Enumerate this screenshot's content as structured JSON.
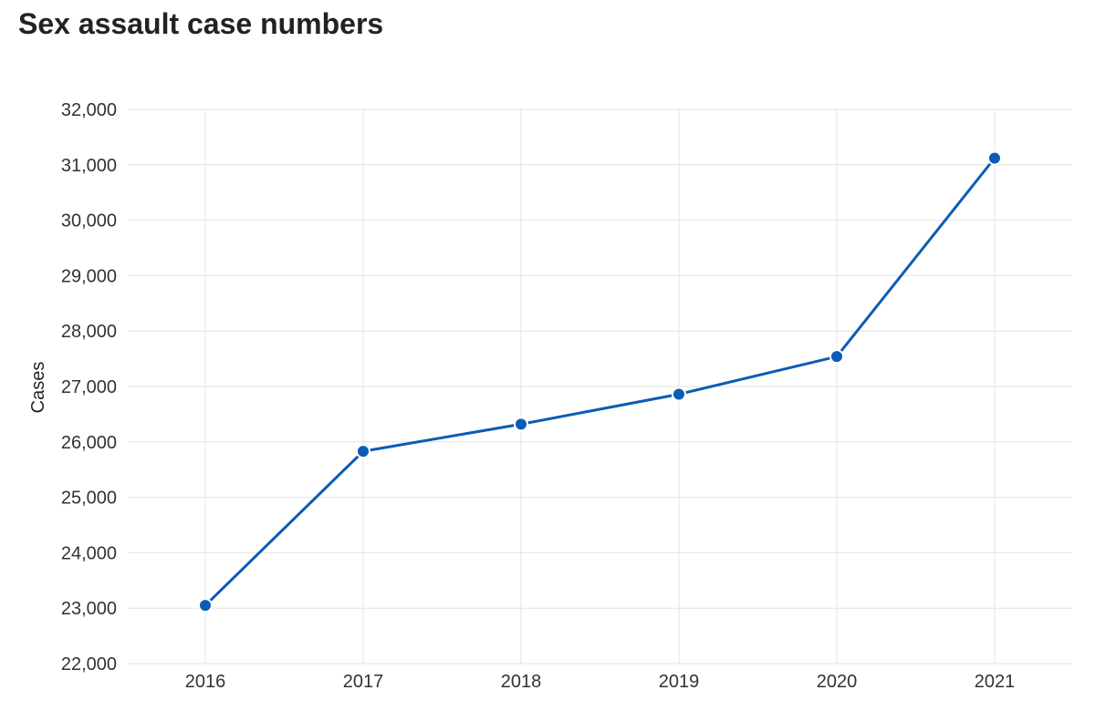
{
  "chart_data": {
    "type": "line",
    "title": "Sex assault case numbers",
    "xlabel": "",
    "ylabel": "Cases",
    "categories": [
      "2016",
      "2017",
      "2018",
      "2019",
      "2020",
      "2021"
    ],
    "series": [
      {
        "values": [
          23050,
          25830,
          26320,
          26860,
          27540,
          31120
        ]
      }
    ],
    "ylim": [
      22000,
      32000
    ],
    "yticks": [
      22000,
      23000,
      24000,
      25000,
      26000,
      27000,
      28000,
      29000,
      30000,
      31000,
      32000
    ],
    "ytick_labels": [
      "22,000",
      "23,000",
      "24,000",
      "25,000",
      "26,000",
      "27,000",
      "28,000",
      "29,000",
      "30,000",
      "31,000",
      "32,000"
    ],
    "grid": true,
    "legend": "none",
    "colors": {
      "line": "#0b5cb5",
      "marker_fill": "#0b5cb5",
      "marker_stroke": "#ffffff",
      "grid": "#e3e3e3",
      "text": "#333333"
    }
  }
}
